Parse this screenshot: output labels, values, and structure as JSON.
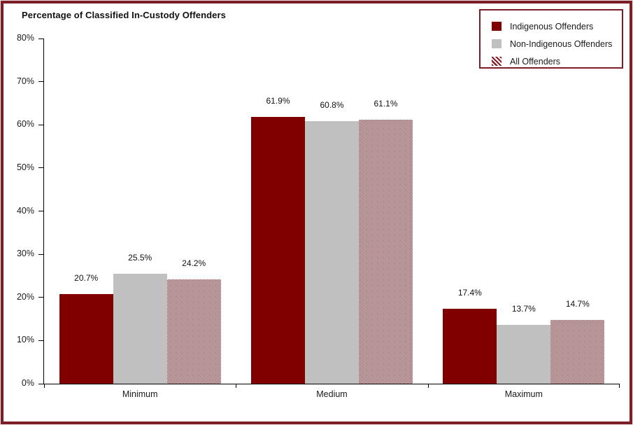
{
  "title": "Percentage of Classified In-Custody Offenders",
  "legend": {
    "items": [
      {
        "label": "Indigenous Offenders",
        "swatch": "maroon-solid-square"
      },
      {
        "label": "Non-Indigenous Offenders",
        "swatch": "gray-solid-square"
      },
      {
        "label": "All Offenders",
        "swatch": "maroon-diagonal-stripe-square"
      }
    ]
  },
  "colors": {
    "maroon": "#800000",
    "gray": "#c0c0c0",
    "frame_border": "#7b1e27",
    "axis": "#000000",
    "text": "#1a1a1a",
    "background": "#ffffff"
  },
  "chart_data": {
    "type": "bar",
    "title": "Percentage of Classified In-Custody Offenders",
    "categories": [
      "Minimum",
      "Medium",
      "Maximum"
    ],
    "series": [
      {
        "name": "Indigenous Offenders",
        "style": "solid-maroon",
        "values": [
          20.7,
          61.9,
          17.4
        ]
      },
      {
        "name": "Non-Indigenous Offenders",
        "style": "solid-gray",
        "values": [
          25.5,
          60.8,
          13.7
        ]
      },
      {
        "name": "All Offenders",
        "style": "checker-maroon",
        "values": [
          24.2,
          61.1,
          14.7
        ]
      }
    ],
    "data_label_format": "{value}%",
    "xlabel": "",
    "ylabel": "",
    "ylim": [
      0,
      80
    ],
    "yticks": [
      "0%",
      "10%",
      "20%",
      "30%",
      "40%",
      "50%",
      "60%",
      "70%",
      "80%"
    ],
    "grid": false,
    "legend_position": "top-right"
  }
}
